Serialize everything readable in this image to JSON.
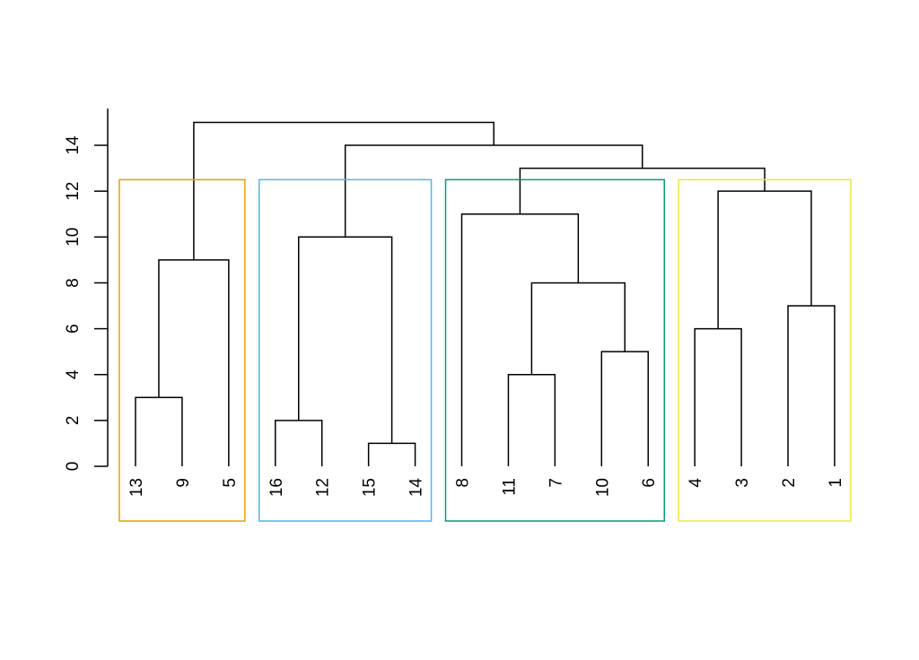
{
  "chart_data": {
    "type": "dendrogram",
    "title": "",
    "xlabel": "",
    "ylabel": "",
    "ylim": [
      0,
      15.6
    ],
    "y_ticks": [
      "0",
      "2",
      "4",
      "6",
      "8",
      "10",
      "12",
      "14"
    ],
    "y_tick_values": [
      0,
      2,
      4,
      6,
      8,
      10,
      12,
      14
    ],
    "leaves": [
      "13",
      "9",
      "5",
      "16",
      "12",
      "15",
      "14",
      "8",
      "11",
      "7",
      "10",
      "6",
      "4",
      "3",
      "2",
      "1"
    ],
    "merges": [
      {
        "left": "13",
        "right": "9",
        "height": 3,
        "id": "a"
      },
      {
        "left": "a",
        "right": "5",
        "height": 9,
        "id": "A"
      },
      {
        "left": "16",
        "right": "12",
        "height": 2,
        "id": "b1"
      },
      {
        "left": "15",
        "right": "14",
        "height": 1,
        "id": "b2"
      },
      {
        "left": "b1",
        "right": "b2",
        "height": 10,
        "id": "B"
      },
      {
        "left": "11",
        "right": "7",
        "height": 4,
        "id": "c1"
      },
      {
        "left": "10",
        "right": "6",
        "height": 5,
        "id": "c2"
      },
      {
        "left": "c1",
        "right": "c2",
        "height": 8,
        "id": "c3"
      },
      {
        "left": "8",
        "right": "c3",
        "height": 11,
        "id": "C"
      },
      {
        "left": "4",
        "right": "3",
        "height": 6,
        "id": "d1"
      },
      {
        "left": "2",
        "right": "1",
        "height": 7,
        "id": "d2"
      },
      {
        "left": "d1",
        "right": "d2",
        "height": 12,
        "id": "D"
      },
      {
        "left": "C",
        "right": "D",
        "height": 13,
        "id": "CD"
      },
      {
        "left": "B",
        "right": "CD",
        "height": 14,
        "id": "BCD"
      },
      {
        "left": "A",
        "right": "BCD",
        "height": 15,
        "id": "root"
      }
    ],
    "cluster_boxes": [
      {
        "first_leaf": 0,
        "last_leaf": 2,
        "height": 12.5,
        "color": "#E69F00"
      },
      {
        "first_leaf": 3,
        "last_leaf": 6,
        "height": 12.5,
        "color": "#56B4E9"
      },
      {
        "first_leaf": 7,
        "last_leaf": 11,
        "height": 12.5,
        "color": "#009E73"
      },
      {
        "first_leaf": 12,
        "last_leaf": 15,
        "height": 12.5,
        "color": "#F0E442"
      }
    ]
  }
}
